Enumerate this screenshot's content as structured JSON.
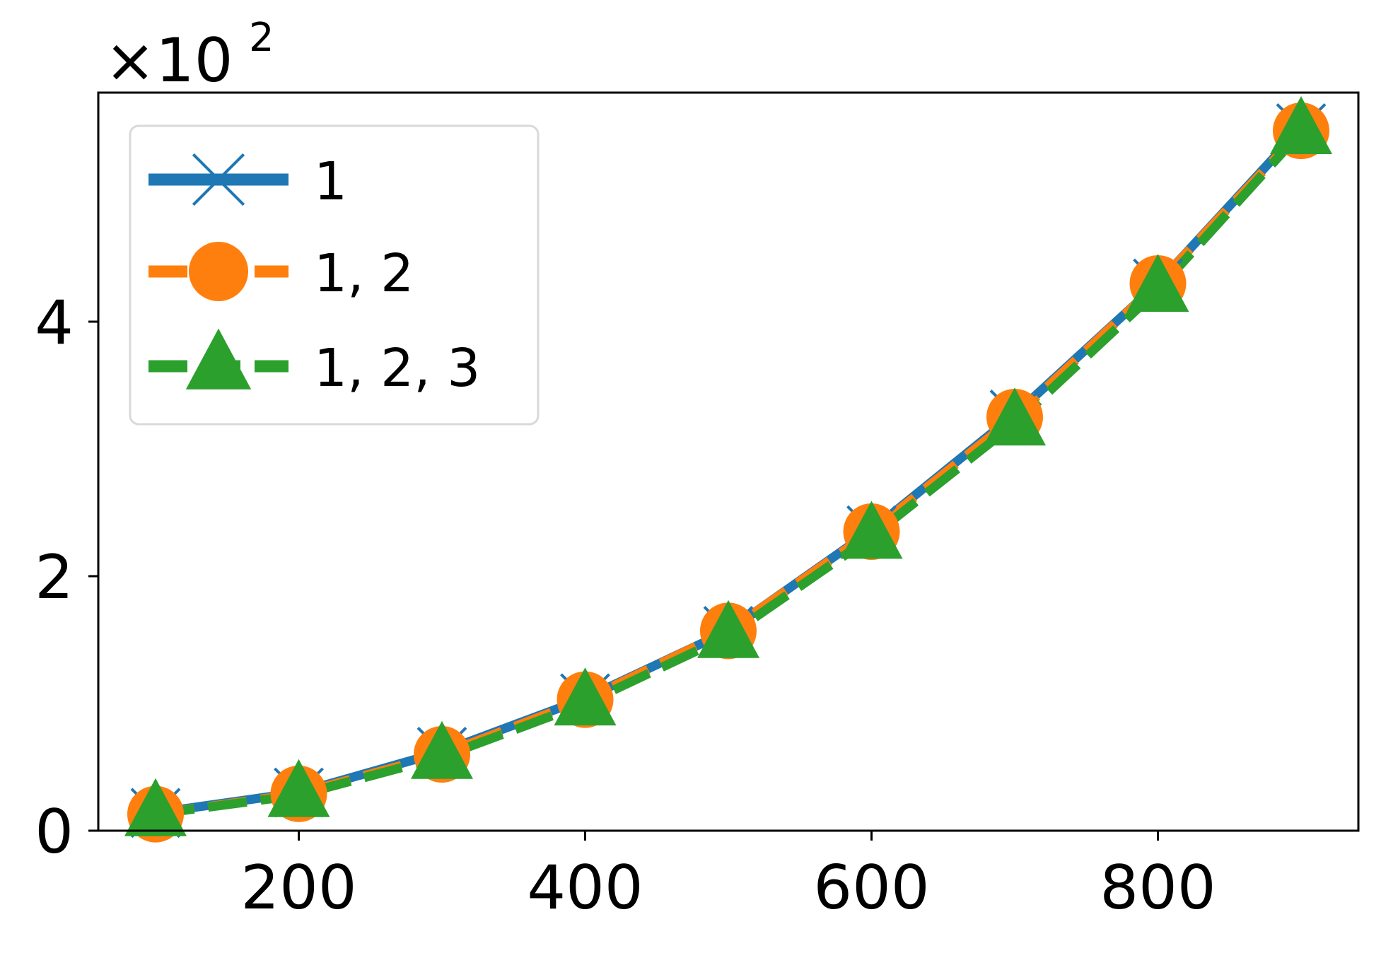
{
  "chart_data": {
    "type": "line",
    "title": "",
    "xlabel": "",
    "ylabel": "",
    "y_multiplier": {
      "base": "×10",
      "exponent": "2"
    },
    "x": [
      100,
      200,
      300,
      400,
      500,
      600,
      700,
      800,
      900
    ],
    "xlim": [
      60,
      940
    ],
    "ylim": [
      0,
      5.8
    ],
    "xticks": [
      200,
      400,
      600,
      800
    ],
    "xtick_labels": [
      "200",
      "400",
      "600",
      "800"
    ],
    "yticks": [
      0,
      2,
      4
    ],
    "ytick_labels": [
      "0",
      "2",
      "4"
    ],
    "grid": false,
    "legend": {
      "position": "top-left",
      "frame": true
    },
    "series": [
      {
        "name": "1",
        "color": "#1f77b4",
        "marker": "x",
        "linestyle": "solid",
        "values": [
          0.14,
          0.3,
          0.62,
          1.04,
          1.57,
          2.36,
          3.27,
          4.3,
          5.52
        ]
      },
      {
        "name": "1, 2",
        "color": "#ff7f0e",
        "marker": "circle",
        "linestyle": "dashed",
        "values": [
          0.13,
          0.29,
          0.6,
          1.03,
          1.57,
          2.35,
          3.25,
          4.3,
          5.5
        ]
      },
      {
        "name": "1, 2, 3",
        "color": "#2ca02c",
        "marker": "triangle",
        "linestyle": "dashed",
        "values": [
          0.13,
          0.28,
          0.58,
          1.0,
          1.53,
          2.31,
          3.2,
          4.25,
          5.49
        ]
      }
    ]
  }
}
